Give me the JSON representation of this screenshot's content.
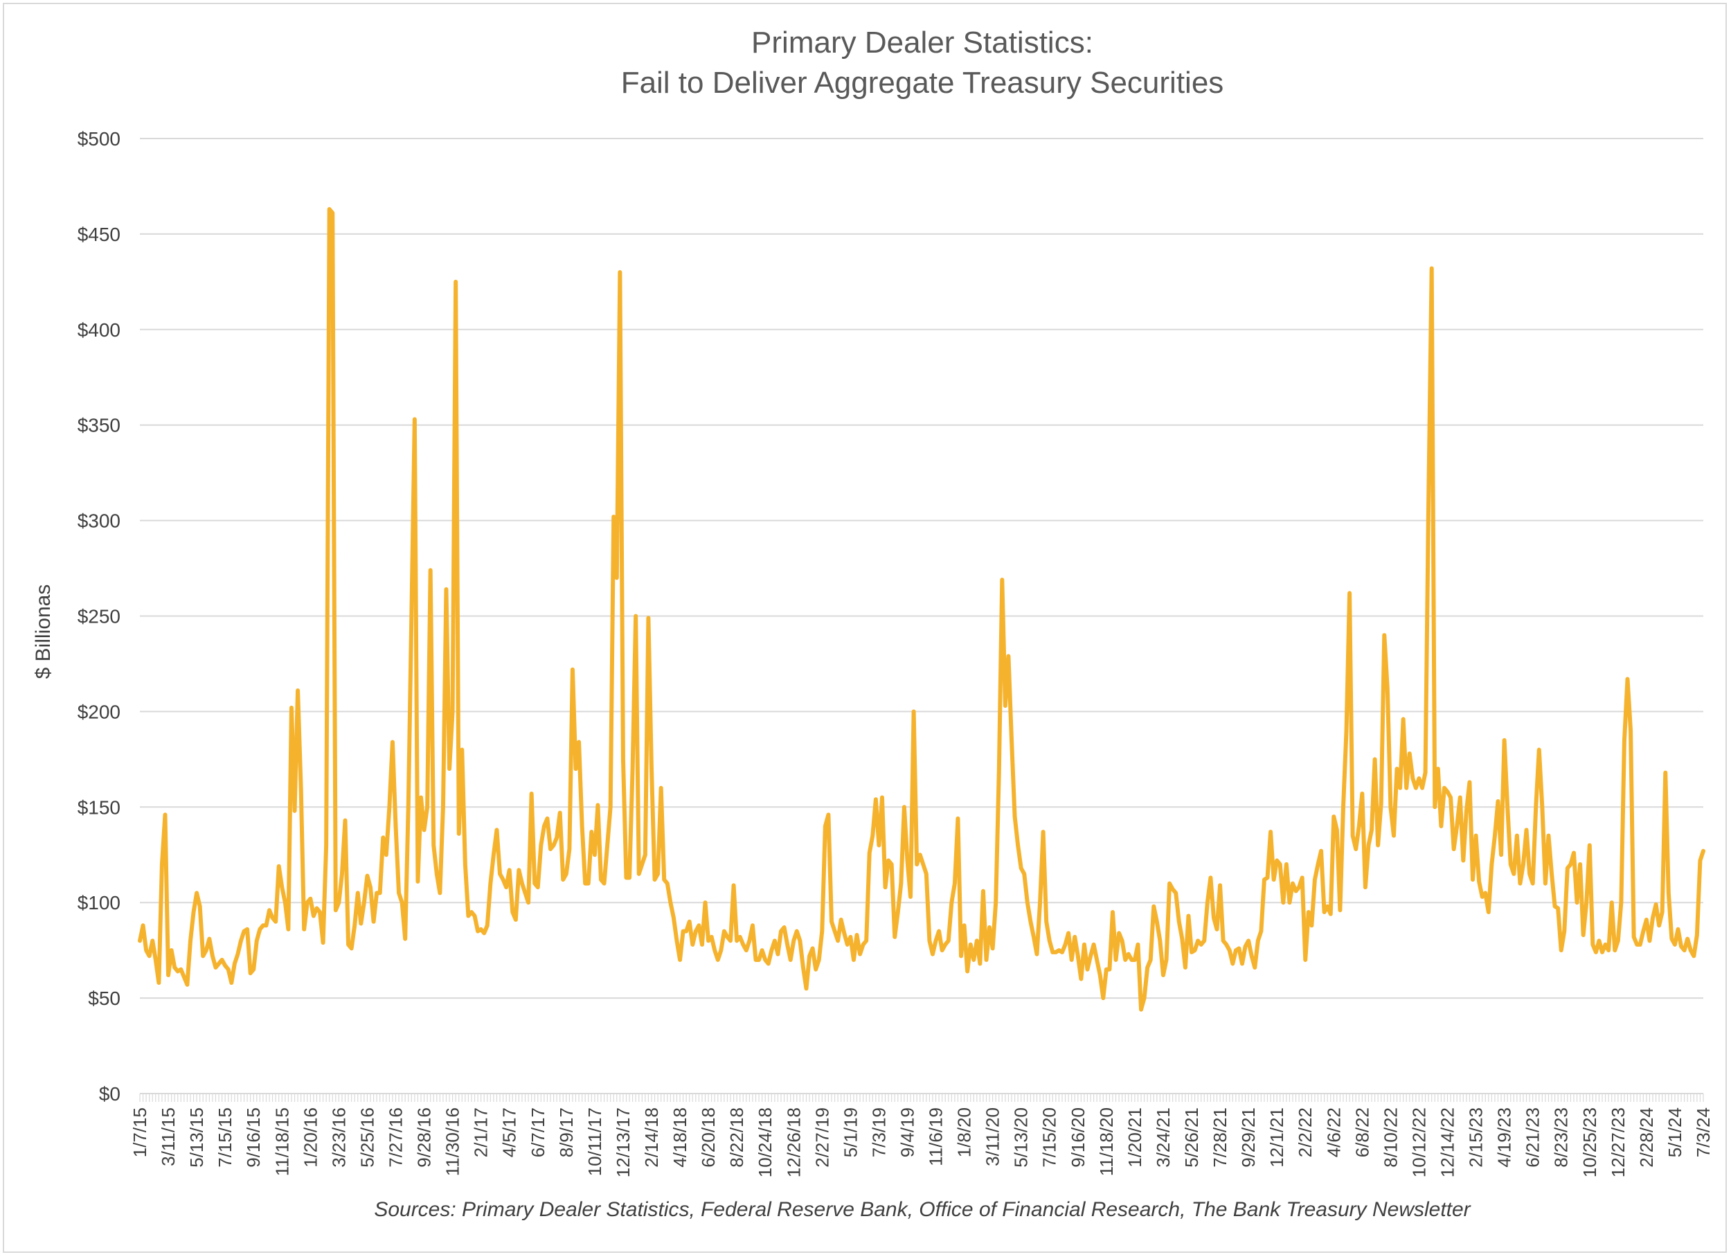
{
  "chart_data": {
    "type": "line",
    "title_lines": [
      "Primary Dealer Statistics:",
      "Fail to Deliver Aggregate Treasury Securities"
    ],
    "xlabel": "",
    "ylabel": "$ Billionas",
    "source": "Sources: Primary Dealer Statistics, Federal Reserve Bank, Office of Financial Research, The Bank Treasury Newsletter",
    "ylim": [
      0,
      500
    ],
    "yticks": [
      0,
      50,
      100,
      150,
      200,
      250,
      300,
      350,
      400,
      450,
      500
    ],
    "ytick_labels": [
      "$0",
      "$50",
      "$100",
      "$150",
      "$200",
      "$250",
      "$300",
      "$350",
      "$400",
      "$450",
      "$500"
    ],
    "xtick_labels": [
      "1/7/15",
      "3/11/15",
      "5/13/15",
      "7/15/15",
      "9/16/15",
      "11/18/15",
      "1/20/16",
      "3/23/16",
      "5/25/16",
      "7/27/16",
      "9/28/16",
      "11/30/16",
      "2/1/17",
      "4/5/17",
      "6/7/17",
      "8/9/17",
      "10/11/17",
      "12/13/17",
      "2/14/18",
      "4/18/18",
      "6/20/18",
      "8/22/18",
      "10/24/18",
      "12/26/18",
      "2/27/19",
      "5/1/19",
      "7/3/19",
      "9/4/19",
      "11/6/19",
      "1/8/20",
      "3/11/20",
      "5/13/20",
      "7/15/20",
      "9/16/20",
      "11/18/20",
      "1/20/21",
      "3/24/21",
      "5/26/21",
      "7/28/21",
      "9/29/21",
      "12/1/21",
      "2/2/22",
      "4/6/22",
      "6/8/22",
      "8/10/22",
      "10/12/22",
      "12/14/22",
      "2/15/23",
      "4/19/23",
      "6/21/23",
      "8/23/23",
      "10/25/23",
      "12/27/23",
      "2/28/24",
      "5/1/24",
      "7/3/24"
    ],
    "grid": true,
    "legend": "none",
    "line_color": "#F5B22D",
    "x_start": "1/7/15",
    "x_end": "7/3/24",
    "x_step": "weekly",
    "series": [
      {
        "values": [
          80,
          88,
          75,
          72,
          80,
          70,
          58,
          120,
          146,
          62,
          75,
          66,
          64,
          65,
          61,
          57,
          80,
          95,
          105,
          98,
          72,
          75,
          81,
          72,
          66,
          68,
          70,
          67,
          65,
          58,
          68,
          73,
          80,
          85,
          86,
          63,
          65,
          80,
          86,
          88,
          88,
          96,
          92,
          90,
          119,
          108,
          100,
          86,
          202,
          148,
          211,
          160,
          86,
          100,
          102,
          93,
          97,
          95,
          79,
          130,
          463,
          461,
          96,
          100,
          115,
          143,
          78,
          76,
          88,
          105,
          89,
          100,
          114,
          108,
          90,
          105,
          105,
          134,
          125,
          150,
          184,
          140,
          105,
          100,
          81,
          150,
          250,
          353,
          111,
          155,
          138,
          150,
          274,
          130,
          115,
          105,
          150,
          264,
          170,
          200,
          425,
          136,
          180,
          120,
          93,
          95,
          93,
          85,
          86,
          84,
          88,
          110,
          125,
          138,
          115,
          112,
          108,
          117,
          95,
          91,
          117,
          110,
          105,
          100,
          157,
          110,
          108,
          130,
          140,
          144,
          128,
          130,
          134,
          147,
          112,
          115,
          128,
          222,
          170,
          184,
          140,
          110,
          110,
          137,
          125,
          151,
          112,
          110,
          130,
          150,
          302,
          270,
          430,
          175,
          113,
          113,
          170,
          250,
          115,
          120,
          125,
          249,
          170,
          112,
          115,
          160,
          112,
          110,
          100,
          92,
          80,
          70,
          85,
          85,
          90,
          78,
          85,
          88,
          78,
          100,
          80,
          82,
          75,
          70,
          75,
          85,
          82,
          80,
          109,
          80,
          82,
          78,
          75,
          80,
          88,
          70,
          70,
          75,
          70,
          68,
          75,
          80,
          73,
          85,
          87,
          78,
          70,
          80,
          85,
          80,
          66,
          55,
          72,
          76,
          65,
          70,
          85,
          140,
          146,
          90,
          85,
          80,
          91,
          84,
          78,
          82,
          70,
          83,
          73,
          78,
          80,
          126,
          135,
          154,
          130,
          155,
          108,
          122,
          120,
          82,
          95,
          110,
          150,
          122,
          103,
          200,
          120,
          125,
          120,
          115,
          80,
          73,
          80,
          85,
          75,
          78,
          80,
          100,
          110,
          144,
          72,
          88,
          64,
          78,
          70,
          80,
          68,
          106,
          70,
          87,
          76,
          100,
          168,
          269,
          203,
          229,
          185,
          145,
          130,
          118,
          115,
          100,
          90,
          82,
          73,
          100,
          137,
          90,
          80,
          74,
          74,
          75,
          74,
          78,
          84,
          70,
          82,
          72,
          60,
          78,
          65,
          72,
          78,
          70,
          62,
          50,
          65,
          65,
          95,
          70,
          84,
          80,
          70,
          73,
          70,
          70,
          78,
          44,
          50,
          66,
          70,
          98,
          90,
          80,
          62,
          70,
          110,
          107,
          105,
          90,
          81,
          66,
          93,
          74,
          75,
          80,
          78,
          80,
          100,
          113,
          92,
          86,
          109,
          80,
          78,
          75,
          68,
          75,
          76,
          68,
          77,
          80,
          72,
          66,
          80,
          85,
          112,
          113,
          137,
          112,
          122,
          120,
          100,
          120,
          100,
          110,
          106,
          108,
          113,
          70,
          95,
          88,
          112,
          120,
          127,
          95,
          98,
          94,
          145,
          138,
          96,
          150,
          190,
          262,
          135,
          128,
          140,
          157,
          108,
          130,
          138,
          175,
          130,
          152,
          240,
          212,
          150,
          135,
          170,
          160,
          196,
          160,
          178,
          165,
          160,
          165,
          160,
          168,
          310,
          432,
          150,
          170,
          140,
          160,
          158,
          155,
          128,
          140,
          155,
          122,
          148,
          163,
          112,
          135,
          111,
          103,
          105,
          95,
          120,
          135,
          153,
          125,
          185,
          150,
          120,
          115,
          135,
          110,
          120,
          138,
          115,
          110,
          150,
          180,
          150,
          110,
          135,
          115,
          98,
          97,
          75,
          85,
          118,
          120,
          126,
          100,
          120,
          83,
          100,
          130,
          78,
          74,
          80,
          74,
          78,
          75,
          100,
          75,
          80,
          100,
          185,
          217,
          190,
          82,
          78,
          78,
          85,
          91,
          80,
          92,
          99,
          88,
          95,
          168,
          105,
          81,
          78,
          86,
          77,
          75,
          81,
          75,
          72,
          83,
          122,
          127
        ]
      }
    ]
  }
}
